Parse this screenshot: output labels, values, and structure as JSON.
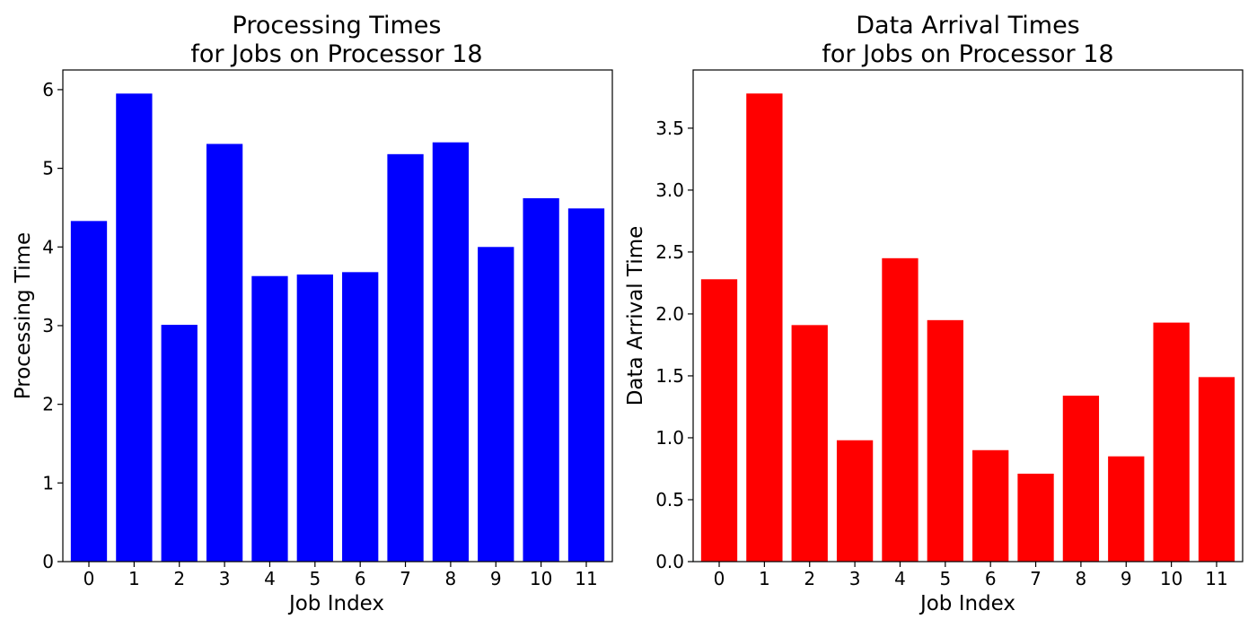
{
  "chart_data": [
    {
      "type": "bar",
      "title_line1": "Processing Times",
      "title_line2": "for Jobs on Processor 18",
      "xlabel": "Job Index",
      "ylabel": "Processing Time",
      "categories": [
        "0",
        "1",
        "2",
        "3",
        "4",
        "5",
        "6",
        "7",
        "8",
        "9",
        "10",
        "11"
      ],
      "values": [
        4.33,
        5.95,
        3.01,
        5.31,
        3.63,
        3.65,
        3.68,
        5.18,
        5.33,
        4.0,
        4.62,
        4.49
      ],
      "color": "#0000ff",
      "ylim": [
        0,
        6.25
      ],
      "yticks": [
        0,
        1,
        2,
        3,
        4,
        5,
        6
      ],
      "ytick_labels": [
        "0",
        "1",
        "2",
        "3",
        "4",
        "5",
        "6"
      ],
      "grid": false,
      "legend": "none"
    },
    {
      "type": "bar",
      "title_line1": "Data Arrival Times",
      "title_line2": "for Jobs on Processor 18",
      "xlabel": "Job Index",
      "ylabel": "Data Arrival Time",
      "categories": [
        "0",
        "1",
        "2",
        "3",
        "4",
        "5",
        "6",
        "7",
        "8",
        "9",
        "10",
        "11"
      ],
      "values": [
        2.28,
        3.78,
        1.91,
        0.98,
        2.45,
        1.95,
        0.9,
        0.71,
        1.34,
        0.85,
        1.93,
        1.49
      ],
      "color": "#ff0000",
      "ylim": [
        0,
        3.97
      ],
      "yticks": [
        0.0,
        0.5,
        1.0,
        1.5,
        2.0,
        2.5,
        3.0,
        3.5
      ],
      "ytick_labels": [
        "0.0",
        "0.5",
        "1.0",
        "1.5",
        "2.0",
        "2.5",
        "3.0",
        "3.5"
      ],
      "grid": false,
      "legend": "none"
    }
  ]
}
